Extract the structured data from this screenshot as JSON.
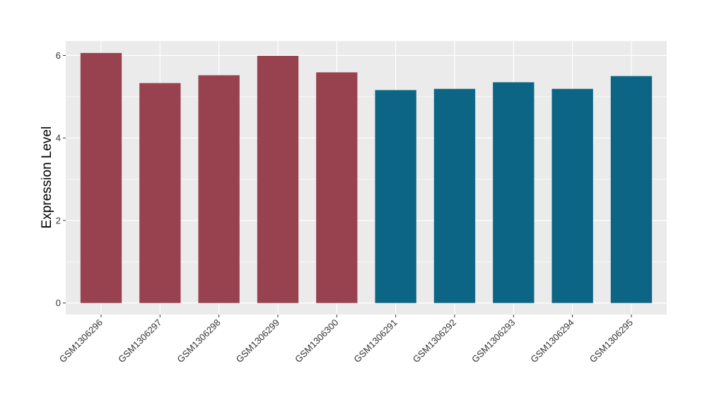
{
  "chart_data": {
    "type": "bar",
    "categories": [
      "GSM1306296",
      "GSM1306297",
      "GSM1306298",
      "GSM1306299",
      "GSM1306300",
      "GSM1306291",
      "GSM1306292",
      "GSM1306293",
      "GSM1306294",
      "GSM1306295"
    ],
    "values": [
      6.06,
      5.33,
      5.52,
      5.99,
      5.59,
      5.16,
      5.19,
      5.35,
      5.19,
      5.5
    ],
    "bar_colors": [
      "#99424f",
      "#99424f",
      "#99424f",
      "#99424f",
      "#99424f",
      "#0c6585",
      "#0c6585",
      "#0c6585",
      "#0c6585",
      "#0c6585"
    ],
    "title": "",
    "xlabel": "",
    "ylabel": "Expression Level",
    "ylim": [
      -0.28,
      6.35
    ],
    "yticks": [
      0,
      2,
      4,
      6
    ],
    "grid": true,
    "panel_background": "#ebebeb",
    "legend": "none"
  }
}
